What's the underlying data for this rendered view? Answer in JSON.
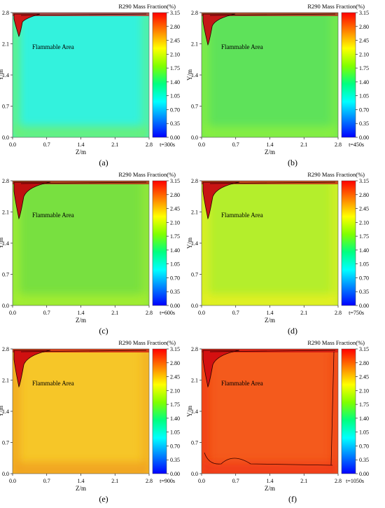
{
  "colorbar": {
    "title": "R290 Mass Fraction(%)",
    "ticks": [
      "3.15",
      "2.80",
      "2.45",
      "2.10",
      "1.75",
      "1.40",
      "1.05",
      "0.70",
      "0.35",
      "0.00"
    ],
    "range": [
      0,
      3.15
    ],
    "colormap": [
      "#0000ff",
      "#0080ff",
      "#00ffff",
      "#00ff80",
      "#80ff00",
      "#ffff00",
      "#ff8000",
      "#ff0000"
    ]
  },
  "axes": {
    "xlabel": "Z/m",
    "ylabel": "Y/m",
    "xticks": [
      "0.0",
      "0.7",
      "1.4",
      "2.1",
      "2.8"
    ],
    "yticks": [
      "0.0",
      "0.7",
      "1.4",
      "2.1",
      "2.8"
    ]
  },
  "annotation": "Flammable Area",
  "chart_data": [
    {
      "type": "heatmap",
      "panel": "(a)",
      "time": "t=300s",
      "bulk_color": "#33f2dd",
      "edge_color": "#6ef070",
      "plume_color": "#d01818",
      "plume_size": 0.5,
      "has_bottom_contour": false
    },
    {
      "type": "heatmap",
      "panel": "(b)",
      "time": "t=450s",
      "bulk_color": "#5ee25a",
      "edge_color": "#8cf040",
      "plume_color": "#c41818",
      "plume_size": 0.8,
      "has_bottom_contour": false
    },
    {
      "type": "heatmap",
      "panel": "(c)",
      "time": "t=600s",
      "bulk_color": "#78e040",
      "edge_color": "#a8ef30",
      "plume_color": "#c01010",
      "plume_size": 1.0,
      "has_bottom_contour": false
    },
    {
      "type": "heatmap",
      "panel": "(d)",
      "time": "t=750s",
      "bulk_color": "#b4ee2c",
      "edge_color": "#e8f020",
      "plume_color": "#c81414",
      "plume_size": 1.0,
      "has_bottom_contour": false
    },
    {
      "type": "heatmap",
      "panel": "(e)",
      "time": "t=900s",
      "bulk_color": "#f6c628",
      "edge_color": "#f0a020",
      "plume_color": "#d01010",
      "plume_size": 1.0,
      "has_bottom_contour": false
    },
    {
      "type": "heatmap",
      "panel": "(f)",
      "time": "t=1050s",
      "bulk_color": "#f45a1c",
      "edge_color": "#f03a14",
      "plume_color": "#d41010",
      "plume_size": 1.0,
      "has_bottom_contour": true
    }
  ]
}
